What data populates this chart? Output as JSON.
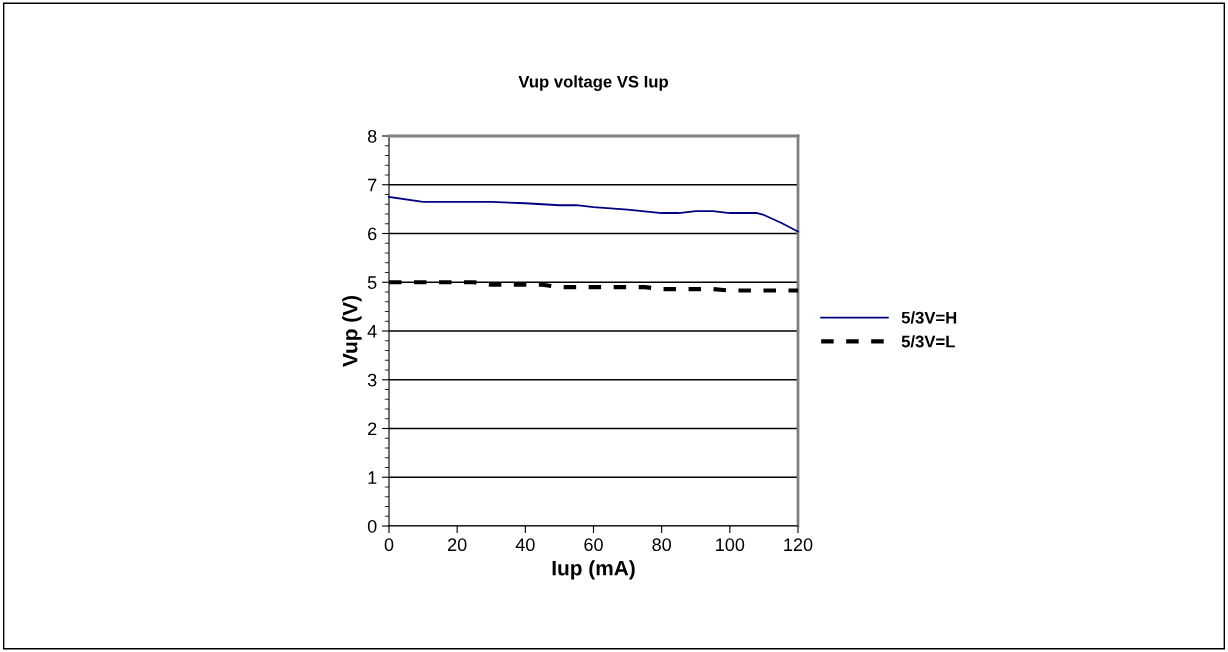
{
  "chart_data": {
    "type": "line",
    "title": "Vup voltage VS Iup",
    "xlabel": "Iup (mA)",
    "ylabel": "Vup (V)",
    "xlim": [
      0,
      120
    ],
    "xticks": [
      0,
      20,
      40,
      60,
      80,
      100,
      120
    ],
    "ylim": [
      0,
      8
    ],
    "yticks": [
      0,
      1,
      2,
      3,
      4,
      5,
      6,
      7,
      8
    ],
    "grid": "y",
    "legend": "right",
    "marker": "none",
    "series": [
      {
        "name": "5/3V=H",
        "color": "#000080",
        "line_style": "solid",
        "x": [
          0,
          10,
          30,
          40,
          50,
          55,
          60,
          70,
          80,
          85,
          90,
          95,
          100,
          108,
          110,
          115,
          120
        ],
        "values": [
          6.75,
          6.65,
          6.65,
          6.62,
          6.58,
          6.58,
          6.54,
          6.49,
          6.42,
          6.42,
          6.46,
          6.46,
          6.42,
          6.42,
          6.38,
          6.22,
          6.04
        ]
      },
      {
        "name": "5/3V=L",
        "color": "#000000",
        "line_style": "dashed",
        "x": [
          0,
          20,
          25,
          30,
          45,
          50,
          75,
          80,
          95,
          100,
          120
        ],
        "values": [
          5.0,
          5.0,
          5.0,
          4.95,
          4.95,
          4.9,
          4.9,
          4.86,
          4.86,
          4.83,
          4.83
        ]
      }
    ]
  }
}
